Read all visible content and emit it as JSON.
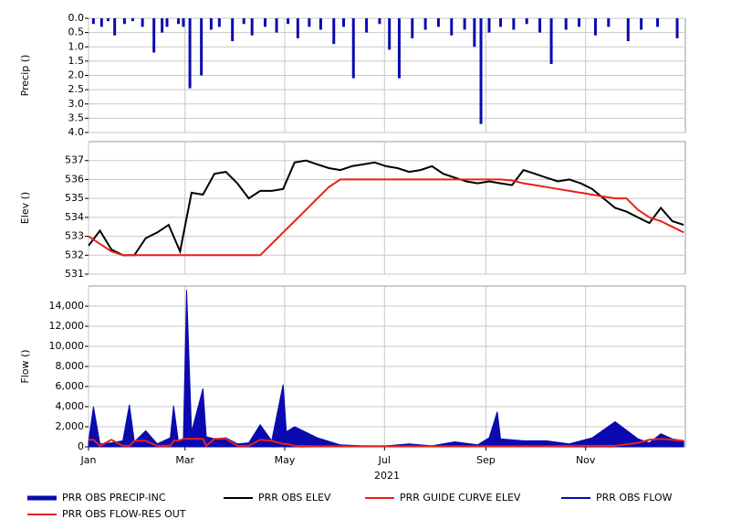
{
  "chart_data": [
    {
      "type": "bar",
      "y_label": "Precip ()",
      "grid": true,
      "xlim": [
        0,
        365
      ],
      "ylim": [
        4,
        0
      ],
      "yticks": [
        {
          "value": 0,
          "label": "0.0"
        },
        {
          "value": 0.5,
          "label": "0.5"
        },
        {
          "value": 1,
          "label": "1.0"
        },
        {
          "value": 1.5,
          "label": "1.5"
        },
        {
          "value": 2,
          "label": "2.0"
        },
        {
          "value": 2.5,
          "label": "2.5"
        },
        {
          "value": 3,
          "label": "3.0"
        },
        {
          "value": 3.5,
          "label": "3.5"
        },
        {
          "value": 4,
          "label": "4.0"
        }
      ],
      "x": [
        3,
        8,
        12,
        16,
        22,
        27,
        33,
        40,
        45,
        48,
        55,
        58,
        62,
        69,
        75,
        80,
        88,
        95,
        100,
        108,
        115,
        122,
        128,
        135,
        142,
        150,
        156,
        162,
        170,
        178,
        184,
        190,
        198,
        206,
        214,
        222,
        230,
        236,
        240,
        245,
        252,
        260,
        268,
        276,
        283,
        292,
        300,
        310,
        318,
        330,
        338,
        348,
        360
      ],
      "series": [
        {
          "name": "PRR OBS PRECIP-INC",
          "color": "#0a0ab0",
          "values": [
            0.2,
            0.3,
            0.1,
            0.6,
            0.2,
            0.1,
            0.3,
            1.2,
            0.5,
            0.3,
            0.2,
            0.3,
            2.45,
            2.0,
            0.4,
            0.3,
            0.8,
            0.2,
            0.6,
            0.3,
            0.5,
            0.2,
            0.7,
            0.3,
            0.4,
            0.9,
            0.3,
            2.1,
            0.5,
            0.2,
            1.1,
            2.1,
            0.7,
            0.4,
            0.3,
            0.6,
            0.4,
            1.0,
            3.7,
            0.5,
            0.3,
            0.4,
            0.2,
            0.5,
            1.6,
            0.4,
            0.3,
            0.6,
            0.3,
            0.8,
            0.4,
            0.3,
            0.7
          ]
        }
      ]
    },
    {
      "type": "line",
      "y_label": "Elev ()",
      "grid": true,
      "xlim": [
        0,
        365
      ],
      "ylim": [
        531,
        538
      ],
      "yticks": [
        531,
        532,
        533,
        534,
        535,
        536,
        537
      ],
      "x": [
        0,
        7,
        14,
        21,
        28,
        35,
        42,
        49,
        56,
        63,
        70,
        77,
        84,
        91,
        98,
        105,
        112,
        119,
        126,
        133,
        140,
        147,
        154,
        161,
        168,
        175,
        182,
        189,
        196,
        203,
        210,
        217,
        224,
        231,
        238,
        245,
        252,
        259,
        266,
        273,
        280,
        287,
        294,
        301,
        308,
        315,
        322,
        329,
        336,
        343,
        350,
        357,
        364
      ],
      "series": [
        {
          "name": "PRR OBS ELEV",
          "color": "#000000",
          "values": [
            532.5,
            533.3,
            532.3,
            532.0,
            532.0,
            532.9,
            533.2,
            533.6,
            532.2,
            535.3,
            535.2,
            536.3,
            536.4,
            535.8,
            535.0,
            535.4,
            535.4,
            535.5,
            536.9,
            537.0,
            536.8,
            536.6,
            536.5,
            536.7,
            536.8,
            536.9,
            536.7,
            536.6,
            536.4,
            536.5,
            536.7,
            536.3,
            536.1,
            535.9,
            535.8,
            535.9,
            535.8,
            535.7,
            536.5,
            536.3,
            536.1,
            535.9,
            536.0,
            535.8,
            535.5,
            535.0,
            534.5,
            534.3,
            534.0,
            533.7,
            534.5,
            533.8,
            533.6
          ]
        },
        {
          "name": "PRR GUIDE CURVE ELEV",
          "color": "#e8201a",
          "values": [
            533,
            532.6,
            532.2,
            532,
            532,
            532,
            532,
            532,
            532,
            532,
            532,
            532,
            532,
            532,
            532,
            532,
            532.6,
            533.2,
            533.8,
            534.4,
            535.0,
            535.6,
            536,
            536,
            536,
            536,
            536,
            536,
            536,
            536,
            536,
            536,
            536,
            536,
            536,
            536,
            536,
            535.95,
            535.8,
            535.7,
            535.6,
            535.5,
            535.4,
            535.3,
            535.2,
            535.1,
            535.0,
            535.0,
            534.4,
            534.0,
            533.8,
            533.5,
            533.2
          ]
        }
      ]
    },
    {
      "type": "line",
      "y_label": "Flow ()",
      "x_label": "2021",
      "grid": true,
      "xlim": [
        0,
        365
      ],
      "xticks": [
        {
          "value": 0,
          "label": "Jan"
        },
        {
          "value": 59,
          "label": "Mar"
        },
        {
          "value": 120,
          "label": "May"
        },
        {
          "value": 181,
          "label": "Jul"
        },
        {
          "value": 243,
          "label": "Sep"
        },
        {
          "value": 304,
          "label": "Nov"
        }
      ],
      "ylim": [
        0,
        16000
      ],
      "yticks": [
        0,
        {
          "value": 2000,
          "label": "2,000"
        },
        {
          "value": 4000,
          "label": "4,000"
        },
        {
          "value": 6000,
          "label": "6,000"
        },
        {
          "value": 8000,
          "label": "8,000"
        },
        {
          "value": 10000,
          "label": "10,000"
        },
        {
          "value": 12000,
          "label": "12,000"
        },
        {
          "value": 14000,
          "label": "14,000"
        }
      ],
      "x": [
        0,
        3,
        7,
        14,
        21,
        25,
        28,
        35,
        42,
        50,
        52,
        55,
        58,
        60,
        63,
        70,
        72,
        77,
        84,
        91,
        98,
        105,
        112,
        119,
        121,
        126,
        140,
        154,
        168,
        182,
        196,
        210,
        224,
        238,
        245,
        250,
        252,
        266,
        280,
        294,
        308,
        322,
        336,
        343,
        350,
        357,
        364
      ],
      "series": [
        {
          "name": "PRR OBS FLOW",
          "color": "#0a0ab0",
          "area": true,
          "values": [
            500,
            4000,
            300,
            400,
            600,
            4200,
            500,
            1600,
            300,
            900,
            4100,
            500,
            700,
            15600,
            1500,
            5800,
            1000,
            800,
            900,
            300,
            400,
            2200,
            600,
            6200,
            1500,
            2000,
            900,
            200,
            100,
            100,
            300,
            100,
            500,
            200,
            900,
            3500,
            800,
            600,
            600,
            300,
            900,
            2500,
            800,
            400,
            1300,
            800,
            600
          ]
        },
        {
          "name": "PRR OBS FLOW-RES OUT",
          "color": "#e8201a",
          "values": [
            700,
            700,
            100,
            700,
            100,
            100,
            600,
            600,
            100,
            100,
            600,
            600,
            800,
            800,
            800,
            800,
            100,
            800,
            800,
            100,
            100,
            700,
            600,
            300,
            300,
            100,
            50,
            50,
            50,
            50,
            50,
            50,
            50,
            50,
            50,
            50,
            50,
            50,
            50,
            100,
            100,
            100,
            400,
            700,
            800,
            700,
            600
          ]
        }
      ]
    }
  ]
}
